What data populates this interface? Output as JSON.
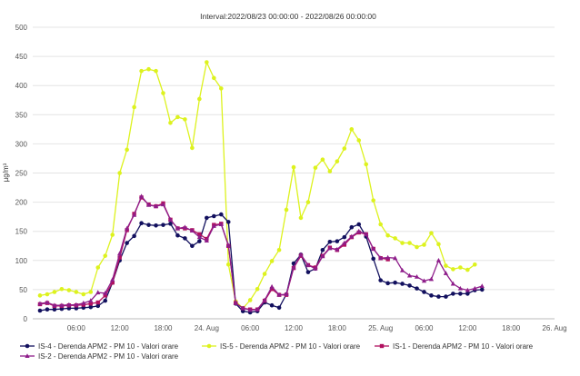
{
  "chart_data": {
    "type": "line",
    "title": "Interval:2022/08/23 00:00:00 - 2022/08/26 00:00:00",
    "ylabel": "µg/m³",
    "xlabel": "",
    "ylim": [
      0,
      500
    ],
    "yticks": [
      0,
      50,
      100,
      150,
      200,
      250,
      300,
      350,
      400,
      450,
      500
    ],
    "x_range_hours": [
      0,
      72
    ],
    "xticks": [
      {
        "hour": 6,
        "label": "06:00"
      },
      {
        "hour": 12,
        "label": "12:00"
      },
      {
        "hour": 18,
        "label": "18:00"
      },
      {
        "hour": 24,
        "label": "24. Aug"
      },
      {
        "hour": 30,
        "label": "06:00"
      },
      {
        "hour": 36,
        "label": "12:00"
      },
      {
        "hour": 42,
        "label": "18:00"
      },
      {
        "hour": 48,
        "label": "25. Aug"
      },
      {
        "hour": 54,
        "label": "06:00"
      },
      {
        "hour": 60,
        "label": "12:00"
      },
      {
        "hour": 66,
        "label": "18:00"
      },
      {
        "hour": 72,
        "label": "26. Aug"
      }
    ],
    "grid": "horizontal",
    "legend_position": "bottom",
    "series": [
      {
        "name": "IS-4 - Derenda APM2 - PM 10 - Valori orare",
        "color": "#12105e",
        "marker": "circle",
        "start_hour": 1,
        "values": [
          14,
          16,
          16,
          17,
          18,
          18,
          19,
          20,
          22,
          31,
          62,
          100,
          130,
          142,
          164,
          161,
          160,
          161,
          163,
          143,
          138,
          125,
          133,
          173,
          176,
          179,
          166,
          26,
          13,
          11,
          13,
          28,
          23,
          19,
          42,
          95,
          110,
          80,
          86,
          118,
          132,
          133,
          140,
          157,
          162,
          141,
          103,
          66,
          61,
          62,
          60,
          57,
          52,
          46,
          40,
          38,
          38,
          43,
          43,
          43,
          49,
          50
        ]
      },
      {
        "name": "IS-5 - Derenda APM2 - PM 10 - Valori orare",
        "color": "#ddf21e",
        "marker": "circle",
        "start_hour": 1,
        "values": [
          40,
          42,
          46,
          51,
          49,
          46,
          42,
          46,
          88,
          108,
          144,
          250,
          290,
          363,
          425,
          428,
          425,
          387,
          336,
          346,
          342,
          293,
          377,
          440,
          413,
          395,
          93,
          30,
          18,
          32,
          51,
          77,
          99,
          118,
          187,
          260,
          173,
          200,
          259,
          273,
          253,
          270,
          292,
          325,
          306,
          265,
          203,
          162,
          143,
          138,
          130,
          130,
          123,
          127,
          147,
          128,
          91,
          85,
          88,
          84,
          93
        ]
      },
      {
        "name": "IS-1 - Derenda APM2 - PM 10 - Valori orare",
        "color": "#b0105f",
        "marker": "square",
        "start_hour": 1,
        "values": [
          25,
          27,
          22,
          22,
          23,
          23,
          24,
          26,
          28,
          40,
          62,
          105,
          152,
          180,
          208,
          196,
          193,
          198,
          170,
          155,
          155,
          152,
          145,
          137,
          161,
          163,
          125,
          27,
          18,
          16,
          16,
          31,
          51,
          41,
          41,
          87,
          108,
          92,
          88,
          108,
          122,
          118,
          127,
          140,
          148,
          145,
          120,
          104,
          102
        ]
      },
      {
        "name": "IS-2 - Derenda APM2 - PM 10 - Valori orare",
        "color": "#8e1d8a",
        "marker": "triangle",
        "start_hour": 1,
        "values": [
          26,
          28,
          23,
          23,
          24,
          24,
          27,
          31,
          45,
          44,
          67,
          112,
          155,
          178,
          210,
          195,
          193,
          196,
          170,
          155,
          157,
          151,
          140,
          134,
          159,
          162,
          126,
          27,
          18,
          15,
          16,
          32,
          55,
          41,
          42,
          88,
          110,
          92,
          86,
          107,
          121,
          119,
          130,
          141,
          150,
          145,
          120,
          104,
          105,
          104,
          83,
          74,
          72,
          65,
          68,
          100,
          78,
          60,
          52,
          49,
          52,
          56
        ]
      }
    ]
  }
}
